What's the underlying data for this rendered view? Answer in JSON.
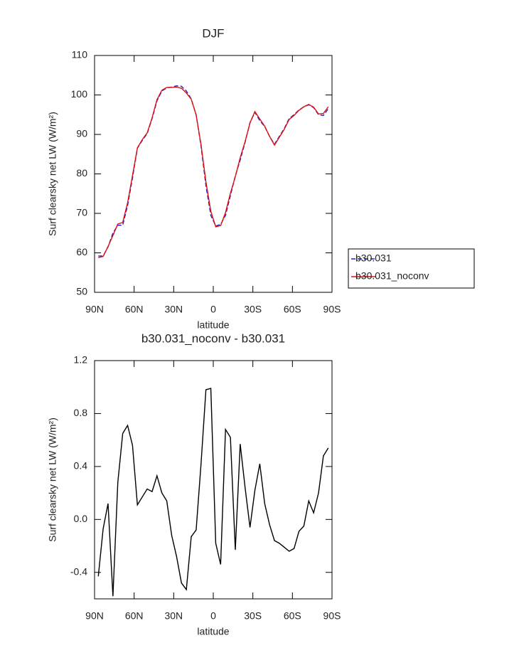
{
  "chart_data": [
    {
      "type": "line",
      "title": "DJF",
      "xlabel": "latitude",
      "ylabel": "Surf clearsky net LW (W/m²)",
      "x": [
        87.16,
        83.48,
        79.78,
        76.07,
        72.36,
        68.65,
        64.94,
        61.23,
        57.52,
        53.81,
        50.1,
        46.39,
        42.68,
        38.97,
        35.26,
        31.54,
        27.83,
        24.12,
        20.41,
        16.7,
        12.99,
        9.28,
        5.57,
        1.86,
        -1.86,
        -5.57,
        -9.28,
        -12.99,
        -16.7,
        -20.41,
        -24.12,
        -27.83,
        -31.54,
        -35.26,
        -38.97,
        -42.68,
        -46.39,
        -50.1,
        -53.81,
        -57.52,
        -61.23,
        -64.94,
        -68.65,
        -72.36,
        -76.07,
        -79.78,
        -83.48,
        -87.16
      ],
      "series": [
        {
          "name": "b30.031",
          "color": "#1f1fd0",
          "linestyle": "dashed",
          "values": [
            59.2,
            59.2,
            61.5,
            65,
            67,
            67,
            72,
            79,
            86.5,
            88.5,
            90.2,
            94,
            98.5,
            101,
            101.8,
            102,
            102.3,
            102.2,
            101,
            99,
            95,
            87,
            77,
            69.5,
            66.8,
            67.2,
            69.5,
            74.5,
            79.5,
            83.5,
            88,
            93,
            95.6,
            93.5,
            92,
            89.5,
            87.5,
            89.5,
            91.5,
            94,
            95,
            96.2,
            97,
            97.5,
            96.8,
            95,
            94.8,
            96.5
          ]
        },
        {
          "name": "b30.031_noconv",
          "color": "#e01010",
          "linestyle": "solid",
          "values": [
            58.8,
            59.1,
            61.6,
            64.4,
            67.3,
            67.7,
            72.7,
            79.6,
            86.6,
            88.7,
            90.4,
            94.2,
            98.8,
            101.2,
            101.9,
            101.9,
            102.0,
            101.7,
            100.5,
            98.9,
            94.9,
            87.4,
            78.0,
            70.5,
            66.6,
            66.9,
            70.2,
            75.1,
            79.3,
            84.1,
            88.2,
            92.9,
            95.8,
            93.9,
            92.1,
            89.5,
            87.3,
            89.3,
            91.3,
            93.8,
            94.8,
            96.1,
            97.0,
            97.6,
            96.9,
            95.2,
            95.3,
            97.0
          ]
        }
      ],
      "xlim": [
        90,
        -90
      ],
      "xticks": [
        {
          "value": 90,
          "label": "90N"
        },
        {
          "value": 60,
          "label": "60N"
        },
        {
          "value": 30,
          "label": "30N"
        },
        0,
        {
          "value": -30,
          "label": "30S"
        },
        {
          "value": -60,
          "label": "60S"
        },
        {
          "value": -90,
          "label": "90S"
        }
      ],
      "ylim": [
        50,
        110
      ],
      "yticks": [
        50,
        60,
        70,
        80,
        90,
        100,
        110
      ]
    },
    {
      "type": "line",
      "title": "b30.031_noconv - b30.031",
      "xlabel": "latitude",
      "ylabel": "Surf clearsky net LW (W/m²)",
      "x": [
        87.16,
        83.48,
        79.78,
        76.07,
        72.36,
        68.65,
        64.94,
        61.23,
        57.52,
        53.81,
        50.1,
        46.39,
        42.68,
        38.97,
        35.26,
        31.54,
        27.83,
        24.12,
        20.41,
        16.7,
        12.99,
        9.28,
        5.57,
        1.86,
        -1.86,
        -5.57,
        -9.28,
        -12.99,
        -16.7,
        -20.41,
        -24.12,
        -27.83,
        -31.54,
        -35.26,
        -38.97,
        -42.68,
        -46.39,
        -50.1,
        -53.81,
        -57.52,
        -61.23,
        -64.94,
        -68.65,
        -72.36,
        -76.07,
        -79.78,
        -83.48,
        -87.16
      ],
      "series": [
        {
          "color": "#000000",
          "linestyle": "solid",
          "values": [
            -0.43,
            -0.07,
            0.12,
            -0.58,
            0.28,
            0.65,
            0.71,
            0.56,
            0.11,
            0.17,
            0.23,
            0.21,
            0.33,
            0.2,
            0.14,
            -0.12,
            -0.28,
            -0.48,
            -0.53,
            -0.13,
            -0.08,
            0.42,
            0.98,
            0.99,
            -0.18,
            -0.34,
            0.68,
            0.62,
            -0.23,
            0.57,
            0.24,
            -0.06,
            0.22,
            0.42,
            0.12,
            -0.04,
            -0.16,
            -0.18,
            -0.21,
            -0.24,
            -0.22,
            -0.09,
            -0.05,
            0.14,
            0.05,
            0.2,
            0.48,
            0.54
          ]
        }
      ],
      "xlim": [
        90,
        -90
      ],
      "xticks": [
        {
          "value": 90,
          "label": "90N"
        },
        {
          "value": 60,
          "label": "60N"
        },
        {
          "value": 30,
          "label": "30N"
        },
        0,
        {
          "value": -30,
          "label": "30S"
        },
        {
          "value": -60,
          "label": "60S"
        },
        {
          "value": -90,
          "label": "90S"
        }
      ],
      "ylim": [
        -0.6,
        1.2
      ],
      "yticks": [
        -0.4,
        {
          "value": 0,
          "label": "0.0"
        },
        0.4,
        0.8,
        1.2
      ]
    }
  ]
}
